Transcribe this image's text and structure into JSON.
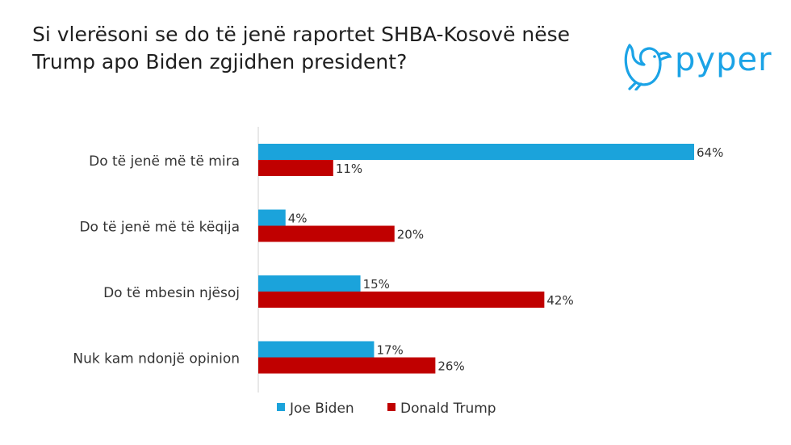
{
  "title_lines": [
    "Si vlerësoni se do të jenë raportet SHBA-Kosovë nëse",
    "Trump apo Biden zgjidhen president?"
  ],
  "logo": {
    "text": "pyper",
    "icon": "bird-icon",
    "color": "#1ba3e6"
  },
  "chart_data": {
    "type": "bar",
    "orientation": "horizontal",
    "title": "Si vlerësoni se do të jenë raportet SHBA-Kosovë nëse Trump apo Biden zgjidhen president?",
    "categories": [
      "Do të jenë më të mira",
      "Do të jenë më të këqija",
      "Do të mbesin njësoj",
      "Nuk kam ndonjë opinion"
    ],
    "series": [
      {
        "name": "Joe Biden",
        "color": "#1ba3db",
        "values": [
          64,
          4,
          15,
          17
        ]
      },
      {
        "name": "Donald Trump",
        "color": "#c00000",
        "values": [
          11,
          20,
          42,
          26
        ]
      }
    ],
    "value_labels": [
      [
        "64%",
        "4%",
        "15%",
        "17%"
      ],
      [
        "11%",
        "20%",
        "42%",
        "26%"
      ]
    ],
    "xlim": [
      0,
      64
    ],
    "unit": "%",
    "grid": false,
    "legend_position": "bottom"
  }
}
